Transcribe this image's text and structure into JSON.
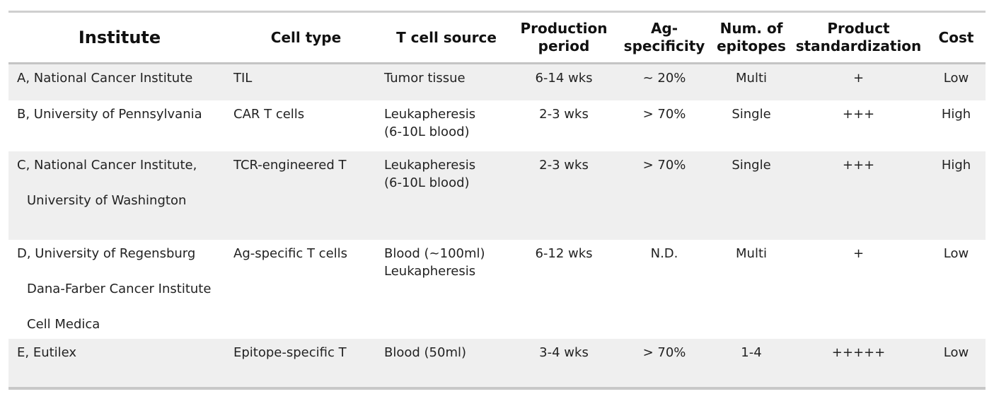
{
  "table": {
    "headers": {
      "institute": "Institute",
      "cell_type": "Cell type",
      "t_cell_source": "T cell source",
      "production_period": [
        "Production",
        "period"
      ],
      "ag_specificity": [
        "Ag-",
        "specificity"
      ],
      "num_epitopes": [
        "Num. of",
        "epitopes"
      ],
      "product_standardization": [
        "Product",
        "standardization"
      ],
      "cost": "Cost"
    },
    "rows": [
      {
        "institute": [
          "A, National Cancer Institute"
        ],
        "cell_type": "TIL",
        "t_cell_source": [
          "Tumor tissue"
        ],
        "production_period": "6-14 wks",
        "ag_specificity": "~ 20%",
        "num_epitopes": "Multi",
        "product_standardization": "+",
        "cost": "Low"
      },
      {
        "institute": [
          "B, University of Pennsylvania"
        ],
        "cell_type": "CAR T cells",
        "t_cell_source": [
          "Leukapheresis",
          "(6-10L blood)"
        ],
        "production_period": "2-3 wks",
        "ag_specificity": "> 70%",
        "num_epitopes": "Single",
        "product_standardization": "+++",
        "cost": "High"
      },
      {
        "institute": [
          "C, National Cancer Institute,",
          "University of Washington"
        ],
        "cell_type": "TCR-engineered T",
        "t_cell_source": [
          "Leukapheresis",
          "(6-10L blood)"
        ],
        "production_period": "2-3 wks",
        "ag_specificity": "> 70%",
        "num_epitopes": "Single",
        "product_standardization": "+++",
        "cost": "High"
      },
      {
        "institute": [
          "D, University of Regensburg",
          "Dana-Farber Cancer Institute",
          "Cell Medica"
        ],
        "cell_type": "Ag-specific T cells",
        "t_cell_source": [
          "Blood (~100ml)",
          "Leukapheresis"
        ],
        "production_period": "6-12 wks",
        "ag_specificity": "N.D.",
        "num_epitopes": "Multi",
        "product_standardization": "+",
        "cost": "Low"
      },
      {
        "institute": [
          "E, Eutilex"
        ],
        "cell_type": "Epitope-specific T",
        "t_cell_source": [
          "Blood (50ml)"
        ],
        "production_period": "3-4 wks",
        "ag_specificity": "> 70%",
        "num_epitopes": "1-4",
        "product_standardization": "+++++",
        "cost": "Low"
      }
    ]
  }
}
